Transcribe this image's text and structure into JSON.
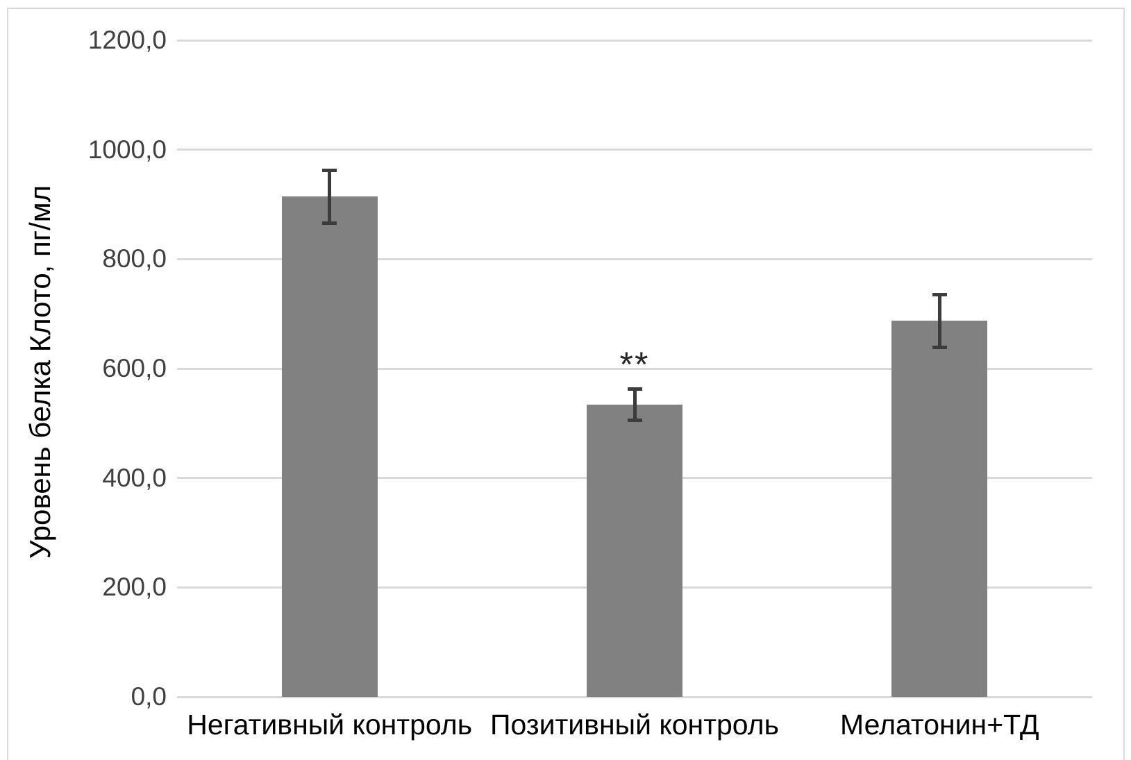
{
  "chart_data": {
    "type": "bar",
    "title": "",
    "xlabel": "",
    "ylabel": "Уровень белка Клото, пг/мл",
    "categories": [
      "Негативный контроль",
      "Позитивный контроль",
      "Мелатонин+ТД"
    ],
    "values": [
      914,
      534,
      687
    ],
    "error_bars": [
      51,
      32,
      51
    ],
    "annotations": [
      {
        "category_index": 1,
        "text": "**"
      }
    ],
    "ylim": [
      0,
      1200
    ],
    "y_tick_values": [
      0,
      200,
      400,
      600,
      800,
      1000,
      1200
    ],
    "y_tick_labels": [
      "0,0",
      "200,0",
      "400,0",
      "600,0",
      "800,0",
      "1000,0",
      "1200,0"
    ],
    "grid": true,
    "legend": false,
    "bar_color": "#818181",
    "error_bar_color": "#3c3c3c",
    "gridline_color": "#d9d9d9",
    "tick_text_color": "#404040",
    "category_text_color": "#000000",
    "frame_border_color": "#d9d9d9",
    "background_color": "#ffffff"
  }
}
